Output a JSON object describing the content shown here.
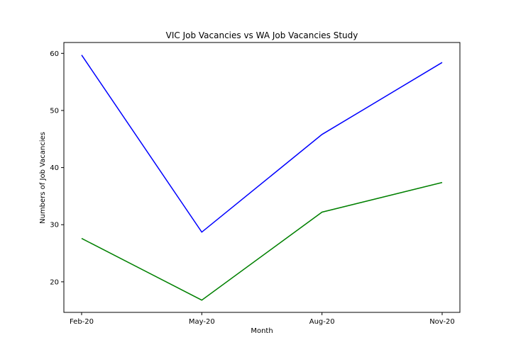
{
  "chart_data": {
    "type": "line",
    "title": "VIC Job Vacancies vs WA Job Vacancies Study",
    "xlabel": "Month",
    "ylabel": "Numbers of Job Vacancies",
    "categories": [
      "Feb-20",
      "May-20",
      "Aug-20",
      "Nov-20"
    ],
    "y_ticks": [
      20,
      30,
      40,
      50,
      60
    ],
    "ylim": [
      14.65,
      61.9
    ],
    "grid": false,
    "series": [
      {
        "color": "#0000ff",
        "values": [
          59.7,
          28.7,
          45.8,
          58.4
        ]
      },
      {
        "color": "#008000",
        "values": [
          27.6,
          16.8,
          32.2,
          37.4
        ]
      }
    ]
  }
}
